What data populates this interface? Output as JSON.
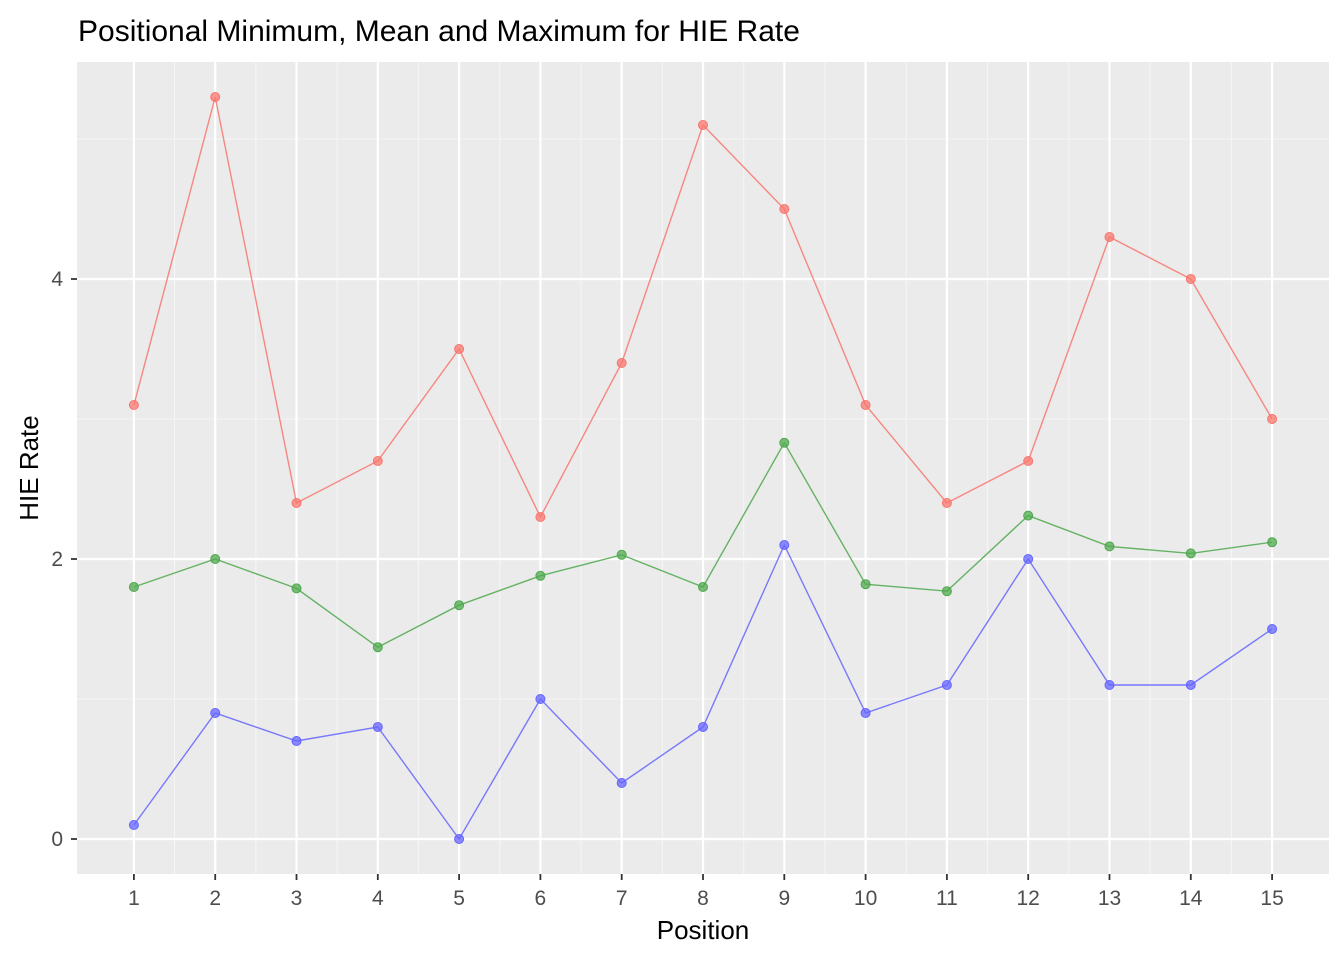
{
  "chart_data": {
    "type": "line",
    "title": "Positional Minimum, Mean and Maximum for HIE Rate",
    "xlabel": "Position",
    "ylabel": "HIE Rate",
    "x": [
      1,
      2,
      3,
      4,
      5,
      6,
      7,
      8,
      9,
      10,
      11,
      12,
      13,
      14,
      15
    ],
    "x_ticks": [
      "1",
      "2",
      "3",
      "4",
      "5",
      "6",
      "7",
      "8",
      "9",
      "10",
      "11",
      "12",
      "13",
      "14",
      "15"
    ],
    "y_ticks": [
      "0",
      "2",
      "4"
    ],
    "y_tick_values": [
      0,
      2,
      4
    ],
    "xlim": [
      0.3,
      15.7
    ],
    "ylim": [
      -0.25,
      5.55
    ],
    "grid": true,
    "legend": "none",
    "series": [
      {
        "role": "maximum",
        "color": "#f8766d",
        "values": [
          3.1,
          5.3,
          2.4,
          2.7,
          3.5,
          2.3,
          3.4,
          5.1,
          4.5,
          3.1,
          2.4,
          2.7,
          4.3,
          4.0,
          3.0
        ]
      },
      {
        "role": "mean",
        "color": "#4da84d",
        "values": [
          1.8,
          2.0,
          1.79,
          1.37,
          1.67,
          1.88,
          2.03,
          1.8,
          2.83,
          1.82,
          1.77,
          2.31,
          2.09,
          2.04,
          2.12
        ]
      },
      {
        "role": "minimum",
        "color": "#6464ff",
        "values": [
          0.1,
          0.9,
          0.7,
          0.8,
          0.0,
          1.0,
          0.4,
          0.8,
          2.1,
          0.9,
          1.1,
          2.0,
          1.1,
          1.1,
          1.5
        ]
      }
    ]
  }
}
